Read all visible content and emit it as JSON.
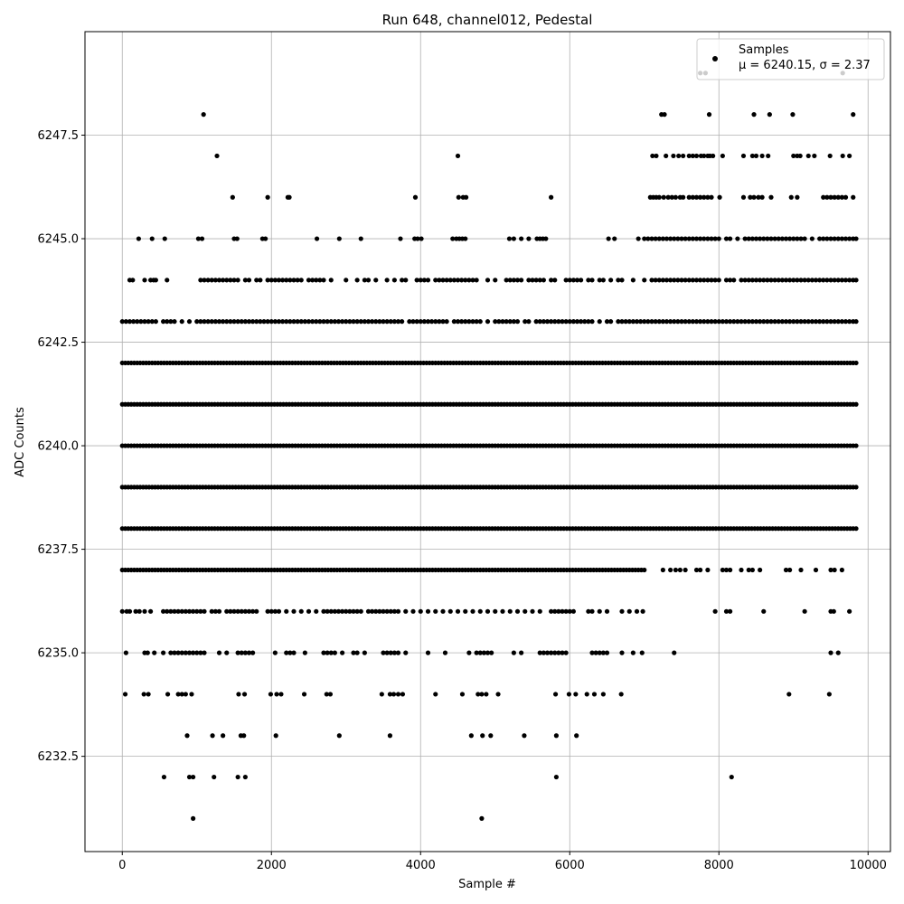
{
  "chart_data": {
    "type": "scatter",
    "title": "Run 648, channel012, Pedestal",
    "xlabel": "Sample #",
    "ylabel": "ADC Counts",
    "xlim": [
      -500,
      10300
    ],
    "ylim": [
      6230.2,
      6250.0
    ],
    "x_ticks": [
      0,
      2000,
      4000,
      6000,
      8000,
      10000
    ],
    "x_tick_labels": [
      "0",
      "2000",
      "4000",
      "6000",
      "8000",
      "10000"
    ],
    "y_ticks": [
      6232.5,
      6235.0,
      6237.5,
      6240.0,
      6242.5,
      6245.0,
      6247.5
    ],
    "y_tick_labels": [
      "6232.5",
      "6235.0",
      "6237.5",
      "6240.0",
      "6242.5",
      "6245.0",
      "6247.5"
    ],
    "grid": true,
    "legend_position": "top-right",
    "series": [
      {
        "name": "Samples",
        "annotation": "μ = 6240.15, σ = 2.37",
        "color": "#000000",
        "marker": "circle",
        "x_range": [
          0,
          9840
        ],
        "levels": [
          {
            "y": 6231,
            "x": [
              950,
              4820
            ]
          },
          {
            "y": 6232,
            "x": [
              560,
              900,
              950,
              1230,
              1550,
              1650,
              5820,
              8170
            ]
          },
          {
            "y": 6233,
            "x": [
              870,
              1210,
              1350,
              1590,
              1630,
              2060,
              2910,
              3590,
              4680,
              4830,
              4940,
              5390,
              5820,
              6090
            ]
          },
          {
            "y": 6234,
            "x": [
              40,
              290,
              350,
              610,
              750,
              800,
              850,
              930,
              1560,
              1640,
              1990,
              2070,
              2130,
              2440,
              2740,
              2790,
              3480,
              3590,
              3640,
              3700,
              3760,
              4200,
              4560,
              4770,
              4820,
              4880,
              5040,
              5810,
              5990,
              6080,
              6230,
              6330,
              6450,
              6690,
              8940,
              9480
            ]
          },
          {
            "y": 6235,
            "x": [
              50,
              300,
              340,
              430,
              550,
              650,
              700,
              750,
              800,
              850,
              900,
              950,
              1000,
              1050,
              1100,
              1300,
              1400,
              1550,
              1600,
              1650,
              1700,
              1750,
              2050,
              2200,
              2250,
              2300,
              2450,
              2700,
              2750,
              2800,
              2850,
              2950,
              3100,
              3150,
              3250,
              3500,
              3550,
              3600,
              3650,
              3700,
              3800,
              4100,
              4330,
              4650,
              4750,
              4800,
              4850,
              4900,
              4950,
              5250,
              5350,
              5600,
              5650,
              5700,
              5750,
              5800,
              5850,
              5900,
              5950,
              6300,
              6350,
              6400,
              6450,
              6500,
              6700,
              6850,
              6970,
              7400,
              9500,
              9600
            ]
          },
          {
            "y": 6236,
            "x": [
              0,
              60,
              100,
              180,
              230,
              300,
              380,
              550,
              600,
              650,
              700,
              750,
              800,
              850,
              900,
              950,
              1000,
              1050,
              1100,
              1200,
              1250,
              1300,
              1400,
              1450,
              1500,
              1550,
              1600,
              1650,
              1700,
              1750,
              1800,
              1950,
              2000,
              2050,
              2100,
              2200,
              2300,
              2400,
              2500,
              2600,
              2700,
              2750,
              2800,
              2850,
              2900,
              2950,
              3000,
              3050,
              3100,
              3150,
              3200,
              3300,
              3350,
              3400,
              3450,
              3500,
              3550,
              3600,
              3650,
              3700,
              3800,
              3900,
              4000,
              4100,
              4200,
              4300,
              4400,
              4500,
              4600,
              4700,
              4800,
              4900,
              5000,
              5100,
              5200,
              5300,
              5400,
              5500,
              5600,
              5750,
              5800,
              5850,
              5900,
              5950,
              6000,
              6050,
              6250,
              6300,
              6400,
              6500,
              6700,
              6800,
              6900,
              6980,
              7950,
              8100,
              8150,
              8600,
              9150,
              9500,
              9540,
              9750
            ]
          },
          {
            "y": 6237,
            "x_dense": [
              0,
              7000
            ],
            "x": [
              7250,
              7350,
              7420,
              7480,
              7550,
              7700,
              7750,
              7850,
              8050,
              8100,
              8150,
              8300,
              8400,
              8450,
              8550,
              8900,
              8950,
              9100,
              9300,
              9500,
              9550,
              9650
            ]
          },
          {
            "y": 6238,
            "x_dense": [
              0,
              9840
            ]
          },
          {
            "y": 6239,
            "x_dense": [
              0,
              9840
            ]
          },
          {
            "y": 6240,
            "x_dense": [
              0,
              9840
            ]
          },
          {
            "y": 6241,
            "x_dense": [
              0,
              9840
            ]
          },
          {
            "y": 6242,
            "x_dense": [
              0,
              9840
            ]
          },
          {
            "y": 6243,
            "x": [
              0,
              50,
              100,
              150,
              200,
              250,
              300,
              350,
              400,
              450,
              550,
              600,
              650,
              700,
              800,
              900,
              1000,
              1050,
              1100,
              1150,
              1200,
              1250,
              1300,
              1350,
              1400,
              1450,
              1500,
              1550,
              1600,
              1650,
              1700,
              1750,
              1800,
              1850,
              1900,
              1950,
              2000,
              2050,
              2100,
              2150,
              2200,
              2250,
              2300,
              2350,
              2400,
              2450,
              2500,
              2550,
              2600,
              2650,
              2700,
              2750,
              2800,
              2850,
              2900,
              2950,
              3000,
              3050,
              3100,
              3150,
              3200,
              3250,
              3300,
              3350,
              3400,
              3450,
              3500,
              3550,
              3600,
              3650,
              3700,
              3750,
              3850,
              3900,
              3950,
              4000,
              4050,
              4100,
              4150,
              4200,
              4250,
              4300,
              4350,
              4450,
              4500,
              4550,
              4600,
              4650,
              4700,
              4750,
              4800,
              4900,
              5000,
              5050,
              5100,
              5150,
              5200,
              5250,
              5300,
              5400,
              5450,
              5550,
              5600,
              5650,
              5700,
              5750,
              5800,
              5850,
              5900,
              5950,
              6000,
              6050,
              6100,
              6150,
              6200,
              6250,
              6300,
              6400,
              6500,
              6550,
              6650,
              6700,
              6750,
              6800,
              6850,
              6900,
              6950,
              7000,
              7050,
              7100,
              7150,
              7200,
              7250,
              7300,
              7350,
              7400,
              7450,
              7500,
              7550,
              7600,
              7650,
              7700,
              7750,
              7800,
              7850,
              7900,
              7950,
              8000,
              8050,
              8100,
              8150,
              8200,
              8250,
              8300,
              8350,
              8400,
              8450,
              8500,
              8550,
              8600,
              8650,
              8700,
              8750,
              8800,
              8850,
              8900,
              8950,
              9000,
              9050,
              9100,
              9150,
              9200,
              9250,
              9300,
              9350,
              9400,
              9450,
              9500,
              9550,
              9600,
              9650,
              9700,
              9750,
              9800,
              9840
            ]
          },
          {
            "y": 6244,
            "x": [
              100,
              140,
              300,
              380,
              420,
              450,
              600,
              1050,
              1100,
              1150,
              1200,
              1250,
              1300,
              1350,
              1400,
              1450,
              1500,
              1550,
              1650,
              1700,
              1800,
              1850,
              1950,
              2000,
              2050,
              2100,
              2150,
              2200,
              2250,
              2300,
              2350,
              2400,
              2500,
              2550,
              2600,
              2650,
              2700,
              2800,
              3000,
              3150,
              3250,
              3300,
              3400,
              3550,
              3650,
              3750,
              3800,
              3950,
              4000,
              4050,
              4100,
              4200,
              4250,
              4300,
              4350,
              4400,
              4450,
              4500,
              4550,
              4600,
              4650,
              4700,
              4750,
              4900,
              5000,
              5150,
              5200,
              5250,
              5300,
              5350,
              5450,
              5500,
              5550,
              5600,
              5650,
              5750,
              5800,
              5950,
              6000,
              6050,
              6100,
              6150,
              6250,
              6300,
              6400,
              6450,
              6550,
              6650,
              6700,
              6850,
              7000,
              7100,
              7150,
              7200,
              7250,
              7300,
              7350,
              7400,
              7450,
              7500,
              7550,
              7600,
              7650,
              7700,
              7750,
              7800,
              7850,
              7900,
              7950,
              8000,
              8100,
              8150,
              8200,
              8300,
              8350,
              8400,
              8450,
              8500,
              8550,
              8600,
              8650,
              8700,
              8750,
              8800,
              8850,
              8900,
              8950,
              9000,
              9050,
              9100,
              9150,
              9200,
              9250,
              9300,
              9350,
              9400,
              9450,
              9500,
              9550,
              9600,
              9650,
              9700,
              9750,
              9800,
              9840
            ]
          },
          {
            "y": 6245,
            "x": [
              220,
              400,
              570,
              1020,
              1070,
              1500,
              1540,
              1880,
              1920,
              2610,
              2910,
              3200,
              3730,
              3920,
              3960,
              4010,
              4430,
              4480,
              4520,
              4560,
              4600,
              5190,
              5250,
              5350,
              5450,
              5560,
              5600,
              5640,
              5680,
              6520,
              6600,
              6920,
              7000,
              7050,
              7100,
              7150,
              7200,
              7250,
              7300,
              7350,
              7400,
              7450,
              7500,
              7550,
              7600,
              7650,
              7700,
              7750,
              7800,
              7850,
              7900,
              7950,
              8000,
              8100,
              8150,
              8250,
              8350,
              8400,
              8450,
              8500,
              8550,
              8600,
              8650,
              8700,
              8750,
              8800,
              8850,
              8900,
              8950,
              9000,
              9050,
              9100,
              9150,
              9250,
              9350,
              9400,
              9450,
              9500,
              9550,
              9600,
              9650,
              9700,
              9750,
              9800,
              9840
            ]
          },
          {
            "y": 6246,
            "x": [
              1480,
              1950,
              2220,
              2240,
              3930,
              4510,
              4570,
              4610,
              5750,
              7080,
              7120,
              7160,
              7200,
              7260,
              7320,
              7370,
              7420,
              7480,
              7520,
              7600,
              7650,
              7700,
              7750,
              7800,
              7850,
              7900,
              8010,
              8330,
              8420,
              8470,
              8530,
              8580,
              8700,
              8970,
              9050,
              9400,
              9450,
              9500,
              9550,
              9600,
              9650,
              9700,
              9800
            ]
          },
          {
            "y": 6247,
            "x": [
              1270,
              4500,
              7110,
              7160,
              7290,
              7390,
              7460,
              7520,
              7600,
              7650,
              7700,
              7760,
              7800,
              7850,
              7880,
              7920,
              8050,
              8330,
              8450,
              8500,
              8580,
              8660,
              9000,
              9050,
              9090,
              9200,
              9280,
              9490,
              9660,
              9750
            ]
          },
          {
            "y": 6248,
            "x": [
              1090,
              7230,
              7270,
              7870,
              8470,
              8680,
              8990,
              9800
            ]
          },
          {
            "y": 6249,
            "x": [
              7750,
              7820,
              9660
            ]
          }
        ]
      }
    ]
  }
}
